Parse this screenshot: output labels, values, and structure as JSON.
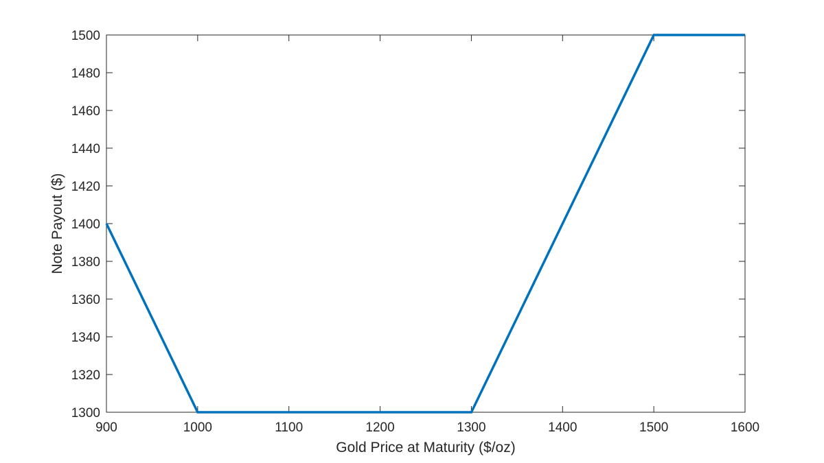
{
  "chart_data": {
    "type": "line",
    "title": "",
    "xlabel": "Gold Price at Maturity ($/oz)",
    "ylabel": "Note Payout ($)",
    "xlim": [
      900,
      1600
    ],
    "ylim": [
      1300,
      1500
    ],
    "x_ticks": [
      900,
      1000,
      1100,
      1200,
      1300,
      1400,
      1500,
      1600
    ],
    "y_ticks": [
      1300,
      1320,
      1340,
      1360,
      1380,
      1400,
      1420,
      1440,
      1460,
      1480,
      1500
    ],
    "grid": false,
    "legend": "none",
    "series": [
      {
        "color": "#0072bd",
        "x": [
          900,
          1000,
          1300,
          1500,
          1600
        ],
        "y": [
          1400,
          1300,
          1300,
          1500,
          1500
        ]
      }
    ]
  }
}
